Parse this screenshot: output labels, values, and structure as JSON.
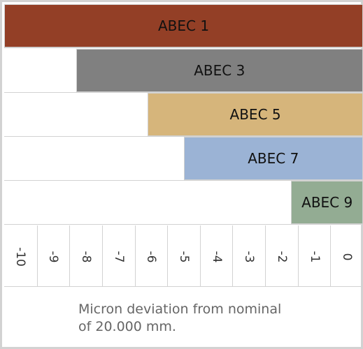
{
  "chart_data": {
    "type": "bar",
    "orientation": "horizontal",
    "categories": [
      "ABEC 1",
      "ABEC 3",
      "ABEC 5",
      "ABEC 7",
      "ABEC 9"
    ],
    "series": [
      {
        "values": [
          [
            -10,
            0
          ],
          [
            -8,
            0
          ],
          [
            -6,
            0
          ],
          [
            -5,
            0
          ],
          [
            -2,
            0
          ]
        ]
      }
    ],
    "bar_colors": [
      "#933f26",
      "#808080",
      "#d6b57b",
      "#9bb3d5",
      "#93ac93"
    ],
    "x_ticks": [
      "-10",
      "-9",
      "-8",
      "-7",
      "-6",
      "-5",
      "-4",
      "-3",
      "-2",
      "-1",
      "0"
    ],
    "xlim": [
      -10,
      0
    ],
    "xlabel": "Micron deviation from nominal\nof 20.000 mm.",
    "title": "",
    "ylabel": "",
    "grid": true
  }
}
